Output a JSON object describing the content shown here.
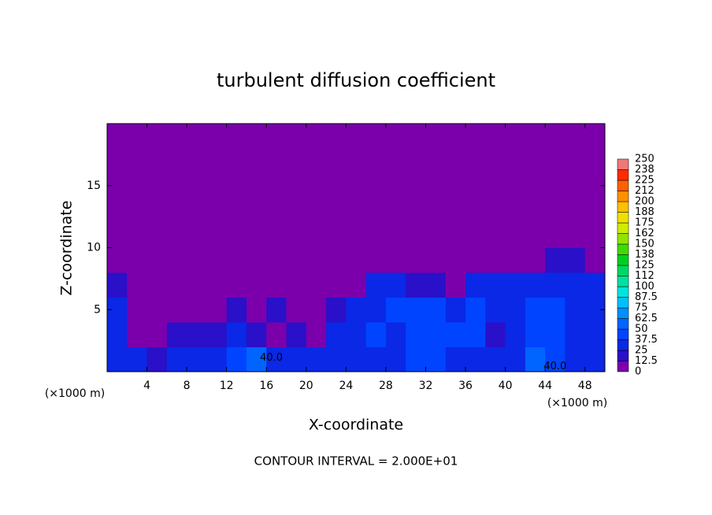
{
  "chart_data": {
    "type": "heatmap",
    "title": "turbulent diffusion coefficient",
    "xlabel": "X-coordinate",
    "ylabel": "Z-coordinate",
    "x_unit": "(×1000 m)",
    "x_unit_right": "(×1000 m)",
    "footer": "CONTOUR INTERVAL = 2.000E+01",
    "xlim": [
      0,
      50
    ],
    "ylim": [
      0,
      20
    ],
    "xticks": [
      4,
      8,
      12,
      16,
      20,
      24,
      28,
      32,
      36,
      40,
      44,
      48
    ],
    "yticks": [
      5,
      10,
      15
    ],
    "z": [
      [
        30,
        25,
        20,
        25,
        30,
        25,
        45,
        55,
        35,
        30,
        30,
        25,
        35,
        35,
        30,
        40,
        45,
        35,
        35,
        35,
        30,
        55,
        45,
        35,
        30
      ],
      [
        30,
        10,
        5,
        15,
        20,
        15,
        35,
        20,
        10,
        15,
        10,
        30,
        35,
        40,
        35,
        40,
        45,
        40,
        40,
        20,
        30,
        45,
        40,
        35,
        35
      ],
      [
        35,
        5,
        5,
        5,
        5,
        10,
        20,
        5,
        15,
        5,
        5,
        15,
        35,
        35,
        40,
        40,
        40,
        30,
        40,
        35,
        35,
        40,
        45,
        35,
        35
      ],
      [
        20,
        0,
        0,
        0,
        0,
        0,
        0,
        0,
        0,
        0,
        0,
        5,
        10,
        25,
        25,
        20,
        15,
        10,
        25,
        30,
        30,
        30,
        35,
        35,
        30
      ],
      [
        0,
        0,
        0,
        0,
        0,
        0,
        0,
        0,
        0,
        0,
        0,
        0,
        0,
        0,
        0,
        0,
        0,
        0,
        0,
        0,
        0,
        0,
        20,
        15,
        0
      ],
      [
        0,
        0,
        0,
        0,
        0,
        0,
        0,
        0,
        0,
        0,
        0,
        0,
        0,
        0,
        0,
        0,
        0,
        0,
        0,
        0,
        0,
        0,
        0,
        0,
        0
      ],
      [
        0,
        0,
        0,
        0,
        0,
        0,
        0,
        0,
        0,
        0,
        0,
        0,
        0,
        0,
        0,
        0,
        0,
        0,
        0,
        0,
        0,
        0,
        0,
        0,
        0
      ],
      [
        0,
        0,
        0,
        0,
        0,
        0,
        0,
        0,
        0,
        0,
        0,
        0,
        0,
        0,
        0,
        0,
        0,
        0,
        0,
        0,
        0,
        0,
        0,
        0,
        0
      ],
      [
        0,
        0,
        0,
        0,
        0,
        0,
        0,
        0,
        0,
        0,
        0,
        0,
        0,
        0,
        0,
        0,
        0,
        0,
        0,
        0,
        0,
        0,
        0,
        0,
        0
      ],
      [
        0,
        0,
        0,
        0,
        0,
        0,
        0,
        0,
        0,
        0,
        0,
        0,
        0,
        0,
        0,
        0,
        0,
        0,
        0,
        0,
        0,
        0,
        0,
        0,
        0
      ]
    ],
    "colorbar_ticks": [
      0,
      12.5,
      25,
      37.5,
      50,
      62.5,
      75,
      87.5,
      100,
      {
        "value": 112.5,
        "label": "112"
      },
      125,
      {
        "value": 137.5,
        "label": "138"
      },
      150,
      {
        "value": 162.5,
        "label": "162"
      },
      175,
      {
        "value": 187.5,
        "label": "188"
      },
      200,
      {
        "value": 212.5,
        "label": "212"
      },
      225,
      {
        "value": 237.5,
        "label": "238"
      },
      250
    ],
    "colors": [
      "#7b00ac",
      "#2a10c8",
      "#0a28e6",
      "#0044ff",
      "#0064ff",
      "#0090ff",
      "#00c0ff",
      "#00e4e0",
      "#00e0a0",
      "#00d860",
      "#00d020",
      "#40dc00",
      "#90e400",
      "#d0ec00",
      "#f0e000",
      "#ffc000",
      "#ff9000",
      "#ff6000",
      "#ff2a00",
      "#f07878"
    ],
    "annotations": [
      {
        "text": "40.0",
        "x": 16.5,
        "y": 1.1
      },
      {
        "text": "40.0",
        "x": 45,
        "y": 0.4
      }
    ]
  }
}
